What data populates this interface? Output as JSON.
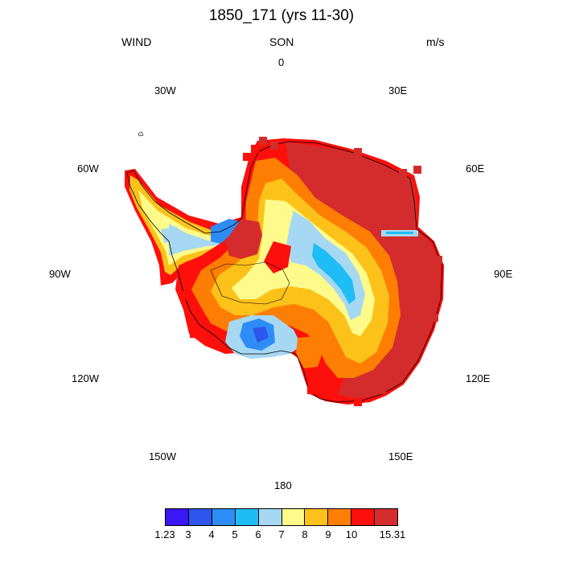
{
  "title": "1850_171 (yrs 11-30)",
  "left_label": "WIND",
  "center_label": "SON",
  "right_label": "m/s",
  "longitude_labels": [
    "0",
    "30E",
    "60E",
    "90E",
    "120E",
    "150E",
    "180",
    "150W",
    "120W",
    "90W",
    "60W",
    "30W"
  ],
  "colorbar": {
    "colors": [
      "#3a17f5",
      "#2e55ec",
      "#2e8cf6",
      "#1fbdf5",
      "#a6d8f4",
      "#fefb8a",
      "#fcc21a",
      "#fd7e03",
      "#fd0f0c",
      "#d42c2c"
    ],
    "tick_labels": [
      "1.23",
      "3",
      "4",
      "5",
      "6",
      "7",
      "8",
      "9",
      "10",
      "15.31"
    ]
  }
}
